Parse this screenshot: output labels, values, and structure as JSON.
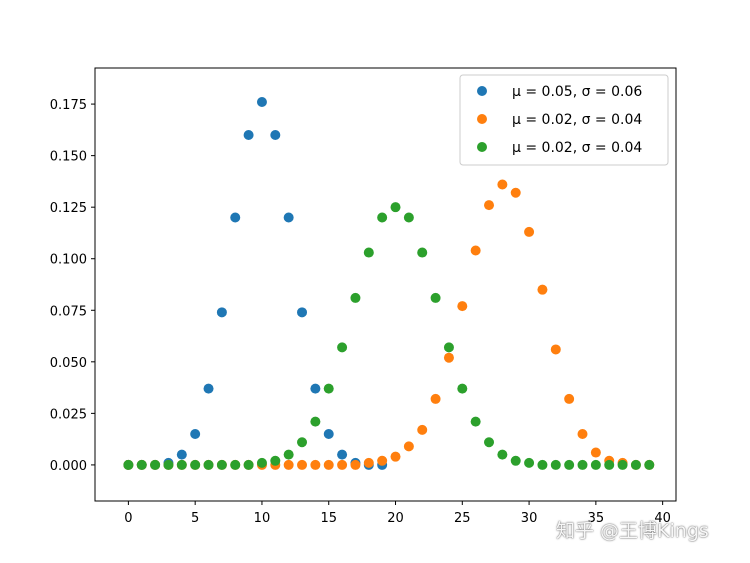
{
  "chart_data": {
    "type": "scatter",
    "xlim": [
      -2.5,
      41
    ],
    "ylim": [
      -0.0175,
      0.1925
    ],
    "xticks": [
      0,
      5,
      10,
      15,
      20,
      25,
      30,
      35,
      40
    ],
    "xtick_labels": [
      "0",
      "5",
      "10",
      "15",
      "20",
      "25",
      "30",
      "35",
      "40"
    ],
    "yticks": [
      0.0,
      0.025,
      0.05,
      0.075,
      0.1,
      0.125,
      0.15,
      0.175
    ],
    "ytick_labels": [
      "0.000",
      "0.025",
      "0.050",
      "0.075",
      "0.100",
      "0.125",
      "0.150",
      "0.175"
    ],
    "grid": false,
    "legend_position": "top-right",
    "series": [
      {
        "name": "μ = 0.05,  σ = 0.06",
        "color": "#1f77b4",
        "x": [
          0,
          1,
          2,
          3,
          4,
          5,
          6,
          7,
          8,
          9,
          10,
          11,
          12,
          13,
          14,
          15,
          16,
          17,
          18,
          19
        ],
        "y": [
          0.0,
          0.0,
          0.0,
          0.001,
          0.005,
          0.015,
          0.037,
          0.074,
          0.12,
          0.16,
          0.176,
          0.16,
          0.12,
          0.074,
          0.037,
          0.015,
          0.005,
          0.001,
          0.0,
          0.0
        ]
      },
      {
        "name": "μ = 0.02,  σ = 0.04",
        "color": "#ff7f0e",
        "x": [
          0,
          1,
          2,
          3,
          4,
          5,
          6,
          7,
          8,
          9,
          10,
          11,
          12,
          13,
          14,
          15,
          16,
          17,
          18,
          19,
          20,
          21,
          22,
          23,
          24,
          25,
          26,
          27,
          28,
          29,
          30,
          31,
          32,
          33,
          34,
          35,
          36,
          37,
          38,
          39
        ],
        "y": [
          0.0,
          0.0,
          0.0,
          0.0,
          0.0,
          0.0,
          0.0,
          0.0,
          0.0,
          0.0,
          0.0,
          0.0,
          0.0,
          0.0,
          0.0,
          0.0,
          0.0,
          0.0,
          0.001,
          0.002,
          0.004,
          0.009,
          0.017,
          0.032,
          0.052,
          0.077,
          0.104,
          0.126,
          0.136,
          0.132,
          0.113,
          0.085,
          0.056,
          0.032,
          0.015,
          0.006,
          0.002,
          0.001,
          0.0,
          0.0
        ]
      },
      {
        "name": "μ = 0.02,  σ = 0.04",
        "color": "#2ca02c",
        "x": [
          0,
          1,
          2,
          3,
          4,
          5,
          6,
          7,
          8,
          9,
          10,
          11,
          12,
          13,
          14,
          15,
          16,
          17,
          18,
          19,
          20,
          21,
          22,
          23,
          24,
          25,
          26,
          27,
          28,
          29,
          30,
          31,
          32,
          33,
          34,
          35,
          36,
          37,
          38,
          39
        ],
        "y": [
          0.0,
          0.0,
          0.0,
          0.0,
          0.0,
          0.0,
          0.0,
          0.0,
          0.0,
          0.0,
          0.001,
          0.002,
          0.005,
          0.011,
          0.021,
          0.037,
          0.057,
          0.081,
          0.103,
          0.12,
          0.125,
          0.12,
          0.103,
          0.081,
          0.057,
          0.037,
          0.021,
          0.011,
          0.005,
          0.002,
          0.001,
          0.0,
          0.0,
          0.0,
          0.0,
          0.0,
          0.0,
          0.0,
          0.0,
          0.0
        ]
      }
    ]
  },
  "watermark": "知乎 @王博Kings"
}
